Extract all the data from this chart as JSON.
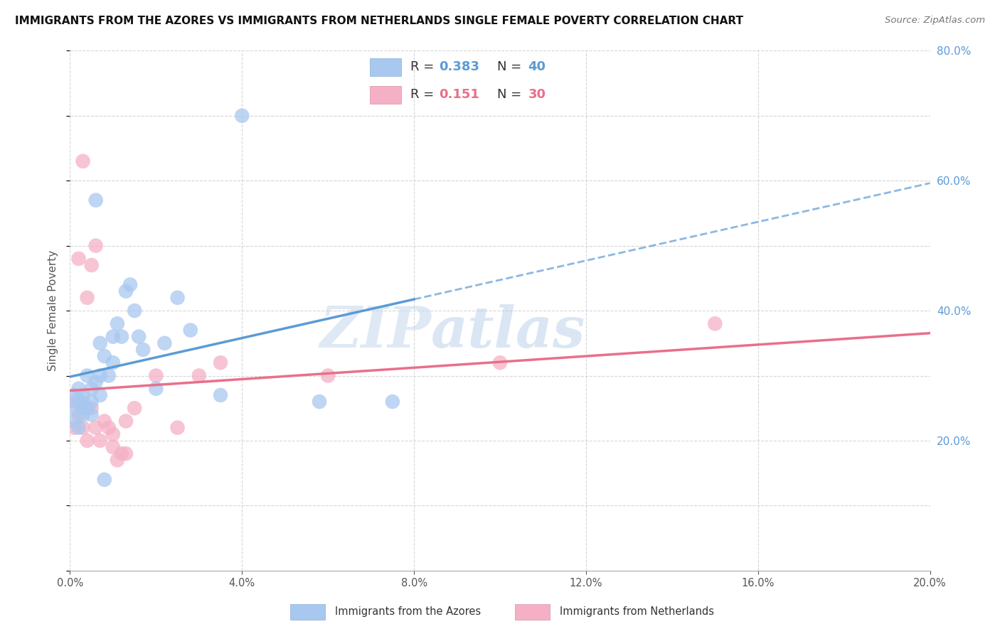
{
  "title": "IMMIGRANTS FROM THE AZORES VS IMMIGRANTS FROM NETHERLANDS SINGLE FEMALE POVERTY CORRELATION CHART",
  "source": "Source: ZipAtlas.com",
  "ylabel": "Single Female Poverty",
  "xlim": [
    0.0,
    0.2
  ],
  "ylim": [
    0.0,
    0.8
  ],
  "x_ticks": [
    0.0,
    0.04,
    0.08,
    0.12,
    0.16,
    0.2
  ],
  "y_ticks": [
    0.0,
    0.2,
    0.4,
    0.6,
    0.8
  ],
  "azores_R": 0.383,
  "azores_N": 40,
  "netherlands_R": 0.151,
  "netherlands_N": 30,
  "azores_color": "#A8C8F0",
  "netherlands_color": "#F5B0C5",
  "azores_line_color": "#5B9BD5",
  "netherlands_line_color": "#E8708A",
  "azores_x": [
    0.001,
    0.001,
    0.001,
    0.002,
    0.002,
    0.002,
    0.003,
    0.003,
    0.003,
    0.003,
    0.004,
    0.004,
    0.005,
    0.005,
    0.005,
    0.006,
    0.006,
    0.007,
    0.007,
    0.007,
    0.008,
    0.009,
    0.01,
    0.01,
    0.011,
    0.012,
    0.013,
    0.014,
    0.015,
    0.016,
    0.017,
    0.02,
    0.022,
    0.025,
    0.028,
    0.035,
    0.04,
    0.058,
    0.075,
    0.008
  ],
  "azores_y": [
    0.25,
    0.27,
    0.23,
    0.28,
    0.26,
    0.22,
    0.26,
    0.25,
    0.27,
    0.24,
    0.3,
    0.25,
    0.28,
    0.26,
    0.24,
    0.57,
    0.29,
    0.35,
    0.3,
    0.27,
    0.33,
    0.3,
    0.36,
    0.32,
    0.38,
    0.36,
    0.43,
    0.44,
    0.4,
    0.36,
    0.34,
    0.28,
    0.35,
    0.42,
    0.37,
    0.27,
    0.7,
    0.26,
    0.26,
    0.14
  ],
  "netherlands_x": [
    0.001,
    0.001,
    0.002,
    0.002,
    0.003,
    0.003,
    0.003,
    0.004,
    0.004,
    0.005,
    0.005,
    0.006,
    0.006,
    0.007,
    0.008,
    0.009,
    0.01,
    0.01,
    0.011,
    0.012,
    0.013,
    0.013,
    0.015,
    0.02,
    0.025,
    0.03,
    0.035,
    0.06,
    0.1,
    0.15
  ],
  "netherlands_y": [
    0.26,
    0.22,
    0.48,
    0.24,
    0.63,
    0.25,
    0.22,
    0.42,
    0.2,
    0.47,
    0.25,
    0.22,
    0.5,
    0.2,
    0.23,
    0.22,
    0.21,
    0.19,
    0.17,
    0.18,
    0.18,
    0.23,
    0.25,
    0.3,
    0.22,
    0.3,
    0.32,
    0.3,
    0.32,
    0.38
  ],
  "watermark_zip": "ZIP",
  "watermark_atlas": "atlas",
  "background_color": "#FFFFFF",
  "grid_color": "#CCCCCC",
  "azores_label": "Immigrants from the Azores",
  "netherlands_label": "Immigrants from Netherlands"
}
